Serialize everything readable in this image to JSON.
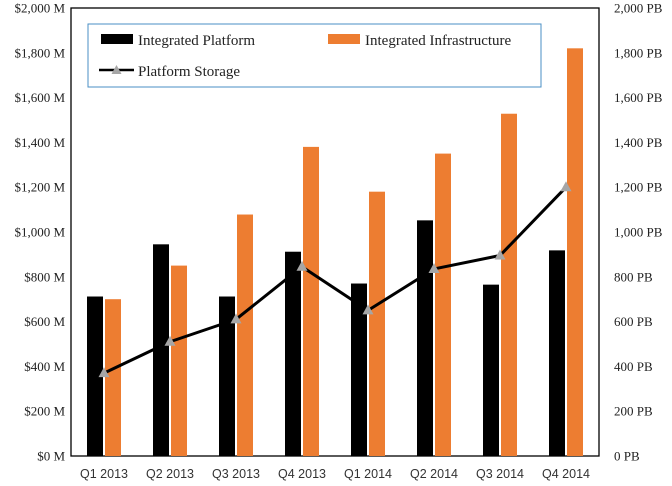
{
  "chart_data": {
    "type": "bar",
    "categories": [
      "Q1 2013",
      "Q2 2013",
      "Q3 2013",
      "Q4 2013",
      "Q1 2014",
      "Q2 2014",
      "Q3 2014",
      "Q4 2014"
    ],
    "series": [
      {
        "name": "Integrated Platform",
        "kind": "bar",
        "axis": "left",
        "color": "#000000",
        "values": [
          712,
          945,
          712,
          912,
          770,
          1052,
          765,
          918
        ]
      },
      {
        "name": "Integrated Infrastructure",
        "kind": "bar",
        "axis": "left",
        "color": "#ED7D31",
        "values": [
          700,
          850,
          1078,
          1380,
          1180,
          1350,
          1528,
          1820
        ]
      },
      {
        "name": "Platform Storage",
        "kind": "line",
        "axis": "right",
        "color": "#000000",
        "marker_color": "#A6A6A6",
        "values": [
          370,
          510,
          610,
          845,
          650,
          835,
          895,
          1200
        ]
      }
    ],
    "y_left": {
      "min": 0,
      "max": 2000,
      "step": 200,
      "tick_labels": [
        "$0 M",
        "$200 M",
        "$400 M",
        "$600 M",
        "$800 M",
        "$1,000 M",
        "$1,200 M",
        "$1,400 M",
        "$1,600 M",
        "$1,800 M",
        "$2,000 M"
      ]
    },
    "y_right": {
      "min": 0,
      "max": 2000,
      "step": 200,
      "tick_labels": [
        "0 PB",
        "200 PB",
        "400 PB",
        "600 PB",
        "800 PB",
        "1,000 PB",
        "1,200 PB",
        "1,400 PB",
        "1,600 PB",
        "1,800 PB",
        "2,000 PB"
      ]
    },
    "grid": false,
    "legend_position": "top-left inside"
  }
}
